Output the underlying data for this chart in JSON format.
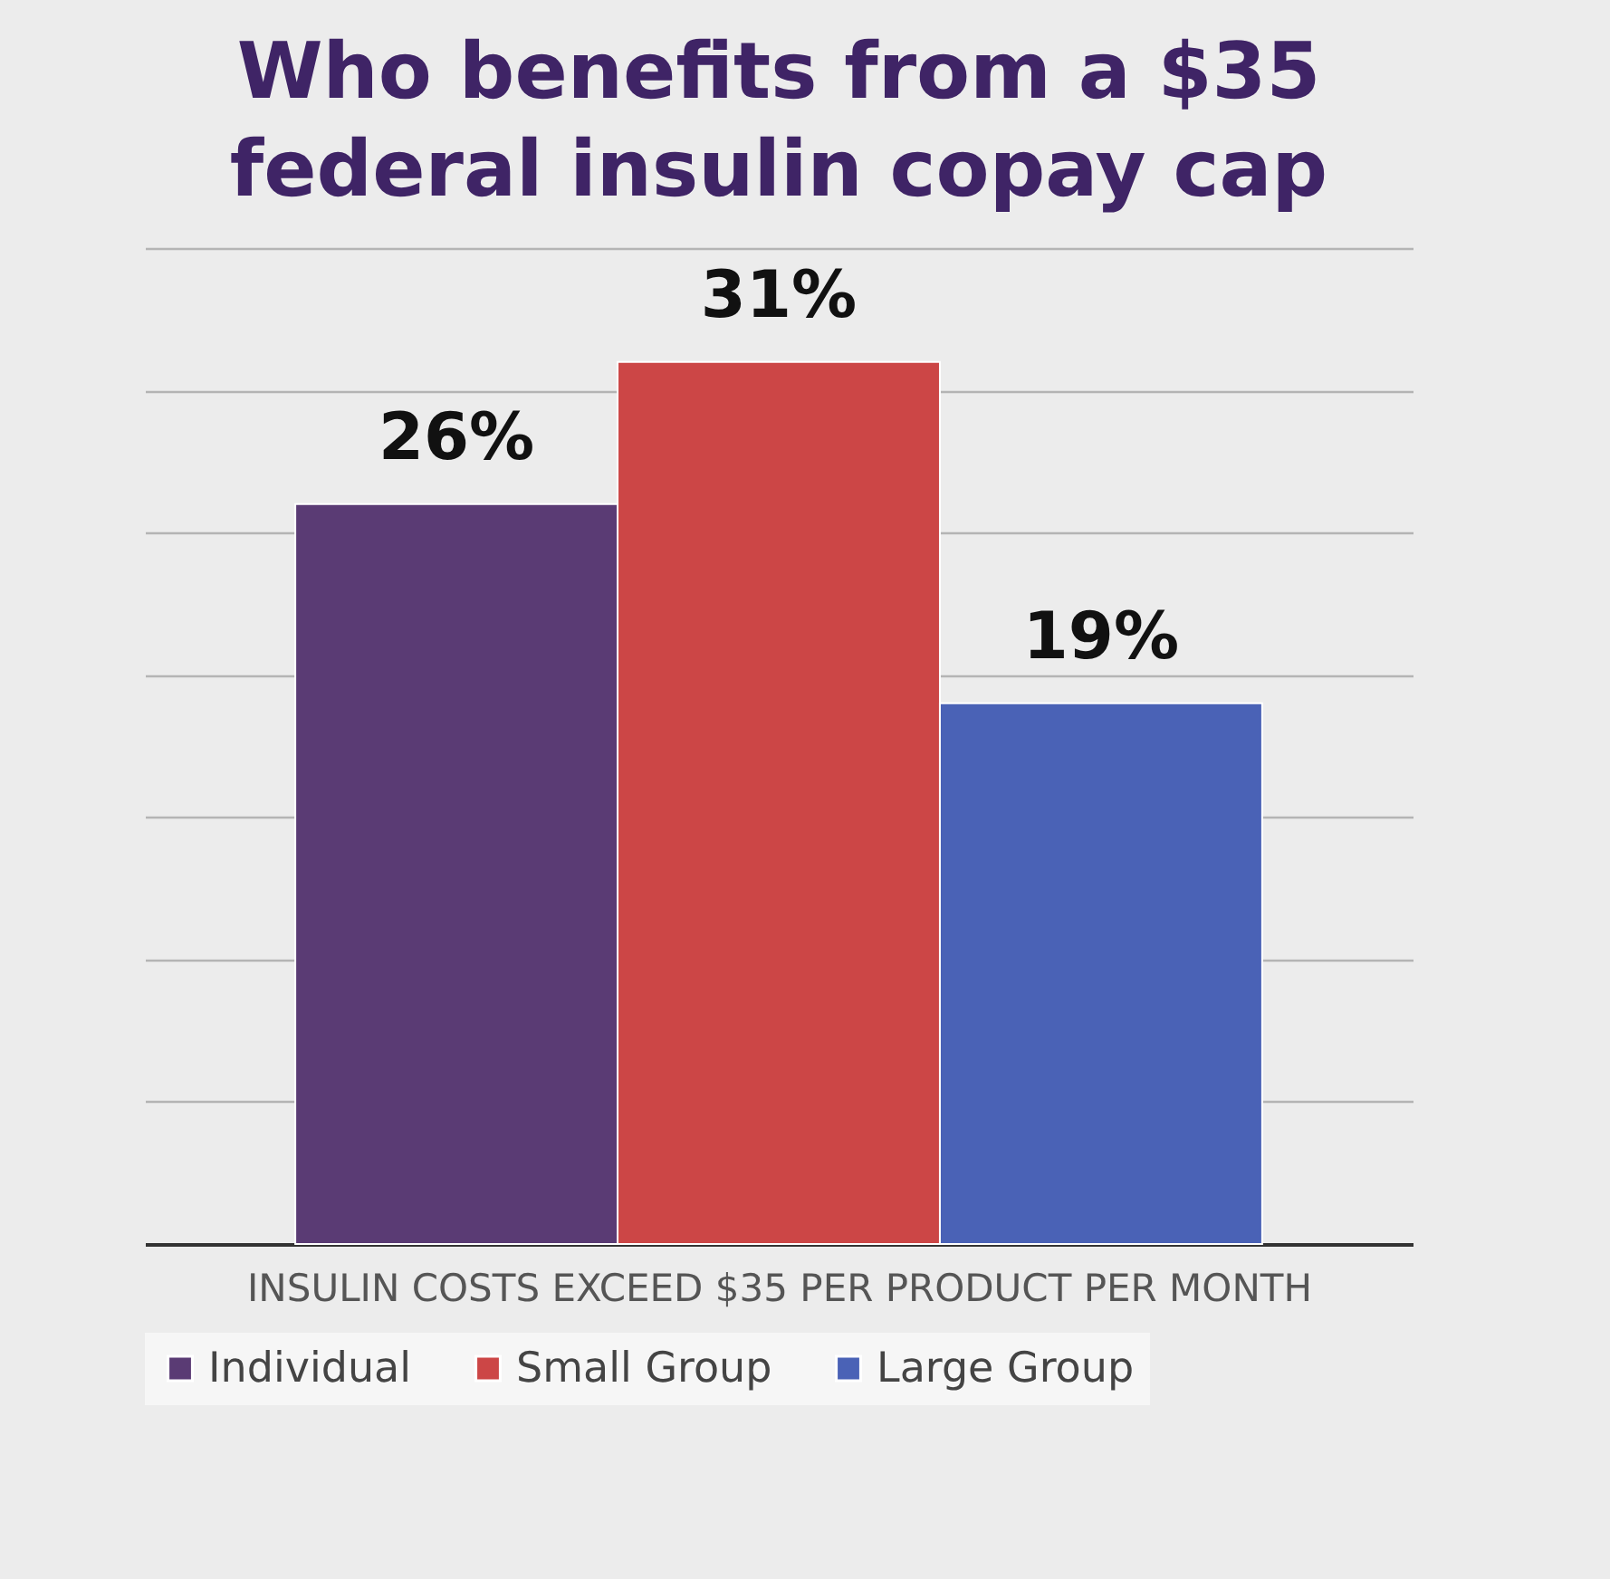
{
  "chart_data": {
    "type": "bar",
    "title": [
      "Who benefits from a $35",
      "federal insulin copay cap"
    ],
    "xlabel": "INSULIN COSTS EXCEED $35 PER PRODUCT PER MONTH",
    "categories": [
      null
    ],
    "series": [
      {
        "name": "Individual",
        "color": "#5a3b74",
        "values": [
          26
        ],
        "value_labels": [
          "26%"
        ]
      },
      {
        "name": "Small Group",
        "color": "#cc4646",
        "values": [
          31
        ],
        "value_labels": [
          "31%"
        ]
      },
      {
        "name": "Large Group",
        "color": "#4a62b6",
        "values": [
          19
        ],
        "value_labels": [
          "19%"
        ]
      }
    ],
    "ylim": [
      0,
      35
    ],
    "yticks": [
      {
        "value": 0,
        "label": null
      },
      {
        "value": 5,
        "label": null
      },
      {
        "value": 10,
        "label": null
      },
      {
        "value": 15,
        "label": null
      },
      {
        "value": 20,
        "label": null
      },
      {
        "value": 25,
        "label": null
      },
      {
        "value": 30,
        "label": null
      },
      {
        "value": 35,
        "label": null
      }
    ],
    "grid": "y",
    "legend": "bottom",
    "tick_labels": false
  }
}
